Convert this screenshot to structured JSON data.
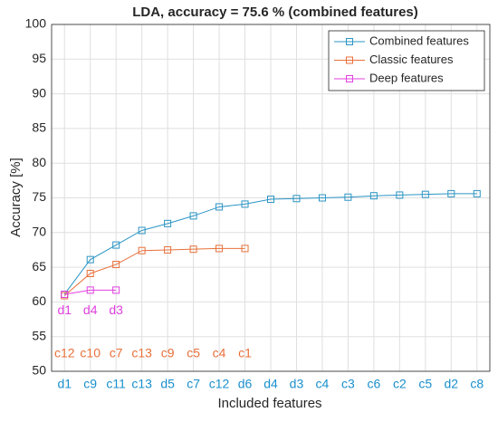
{
  "chart_data": {
    "type": "line",
    "title": "LDA, accuracy = 75.6 % (combined features)",
    "xlabel": "Included features",
    "ylabel": "Accuracy [%]",
    "categories": [
      "d1",
      "c9",
      "c11",
      "c13",
      "d5",
      "c7",
      "c12",
      "d6",
      "d4",
      "d3",
      "c4",
      "c3",
      "c6",
      "c2",
      "c5",
      "d2",
      "c8"
    ],
    "category_color": "#1a8fcc",
    "series": [
      {
        "name": "Combined features",
        "color": "#2b95c4",
        "values": [
          61.1,
          66.1,
          68.2,
          70.3,
          71.3,
          72.4,
          73.7,
          74.1,
          74.8,
          74.9,
          75.0,
          75.1,
          75.3,
          75.4,
          75.5,
          75.6,
          75.6
        ]
      },
      {
        "name": "Classic features",
        "color": "#e8703a",
        "values": [
          60.9,
          64.1,
          65.4,
          67.4,
          67.5,
          67.6,
          67.7,
          67.7,
          null,
          null,
          null,
          null,
          null,
          null,
          null,
          null,
          null
        ]
      },
      {
        "name": "Deep features",
        "color": "#e040e0",
        "values": [
          61.1,
          61.7,
          61.7,
          null,
          null,
          null,
          null,
          null,
          null,
          null,
          null,
          null,
          null,
          null,
          null,
          null,
          null
        ]
      }
    ],
    "annotations": [
      {
        "color": "#e040e0",
        "texts": [
          "d1",
          "d4",
          "d3"
        ]
      },
      {
        "color": "#e8703a",
        "texts": [
          "c12",
          "c10",
          "c7",
          "c13",
          "c9",
          "c5",
          "c4",
          "c1"
        ]
      }
    ],
    "ylim": [
      50,
      100
    ],
    "yticks": [
      50,
      55,
      60,
      65,
      70,
      75,
      80,
      85,
      90,
      95,
      100
    ],
    "grid": true,
    "legend": "northeast",
    "marker": "square"
  }
}
